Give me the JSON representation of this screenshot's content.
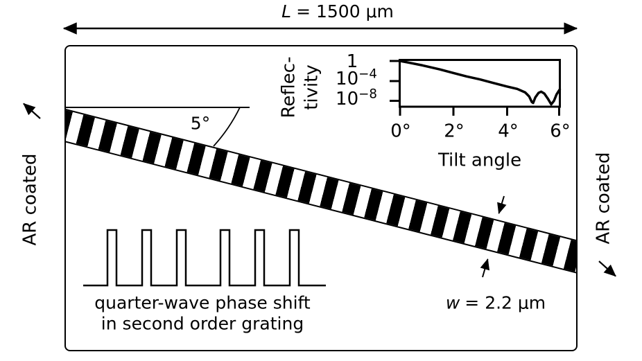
{
  "figure": {
    "length_label": {
      "var": "L",
      "rest": "= 1500 μm"
    },
    "width_label": {
      "var": "w",
      "rest": "= 2.2 μm"
    },
    "tilt_angle_label": "5°",
    "ar_left": "AR coated",
    "ar_right": "AR coated",
    "caption_line1": "quarter-wave phase shift",
    "caption_line2": "in second order grating"
  },
  "waveform": {
    "x_start": 120,
    "x_end": 470,
    "baseline_y": 412,
    "top_y": 332,
    "pulse_width": 13,
    "pulse_lefts": [
      155,
      205,
      255,
      318,
      368,
      418
    ]
  },
  "inset_chart": {
    "type": "line",
    "xlabel": "Tilt angle",
    "ylabel_lines": [
      "Reflec-",
      "tivity"
    ],
    "x_tick_labels": [
      "0°",
      "2°",
      "4°",
      "6°"
    ],
    "x_tick_values_deg": [
      0,
      2,
      4,
      6
    ],
    "y_ticks": [
      {
        "base": "1",
        "exp": "",
        "value": 1
      },
      {
        "base": "10",
        "exp": "−4",
        "value": 0.0001
      },
      {
        "base": "10",
        "exp": "−8",
        "value": 1e-08
      }
    ],
    "xlim_deg": [
      0,
      6
    ],
    "ylim": [
      1e-09,
      1
    ],
    "grid": false,
    "series": [
      {
        "name": "reflectivity-vs-tilt-angle",
        "points": [
          [
            0,
            1
          ],
          [
            0.3,
            0.5
          ],
          [
            0.85,
            0.13
          ],
          [
            1.5,
            0.02
          ],
          [
            2,
            0.004
          ],
          [
            2.5,
            0.0008
          ],
          [
            3,
            0.0002
          ],
          [
            3.5,
            4e-05
          ],
          [
            4,
            8e-06
          ],
          [
            4.4,
            2.5e-06
          ],
          [
            4.7,
            5e-07
          ],
          [
            4.85,
            8e-08
          ],
          [
            4.95,
            6e-09
          ],
          [
            5.0,
            4e-09
          ],
          [
            5.08,
            5e-08
          ],
          [
            5.2,
            4e-07
          ],
          [
            5.3,
            7e-07
          ],
          [
            5.42,
            3e-07
          ],
          [
            5.55,
            3e-08
          ],
          [
            5.68,
            2e-09
          ],
          [
            5.78,
            1e-08
          ],
          [
            5.88,
            2e-07
          ],
          [
            6.0,
            2e-06
          ]
        ]
      }
    ]
  },
  "colors": {
    "ink": "#000000",
    "paper": "#ffffff"
  }
}
